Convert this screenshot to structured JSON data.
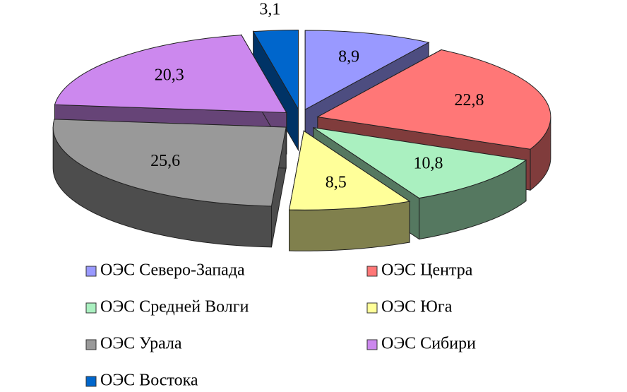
{
  "chart_data": {
    "type": "pie3d",
    "categories": [
      "ОЭС Северо-Запада",
      "ОЭС Центра",
      "ОЭС Средней Волги",
      "ОЭС Юга",
      "ОЭС Урала",
      "ОЭС Сибири",
      "ОЭС Востока"
    ],
    "values": [
      8.9,
      22.8,
      10.8,
      8.5,
      25.6,
      20.3,
      3.1
    ],
    "value_labels": [
      "8,9",
      "22,8",
      "10,8",
      "8,5",
      "25,6",
      "20,3",
      "3,1"
    ],
    "colors": [
      "#9999ff",
      "#ff7777",
      "#aaf0c0",
      "#ffff99",
      "#999999",
      "#cc88ee",
      "#0066cc"
    ]
  }
}
